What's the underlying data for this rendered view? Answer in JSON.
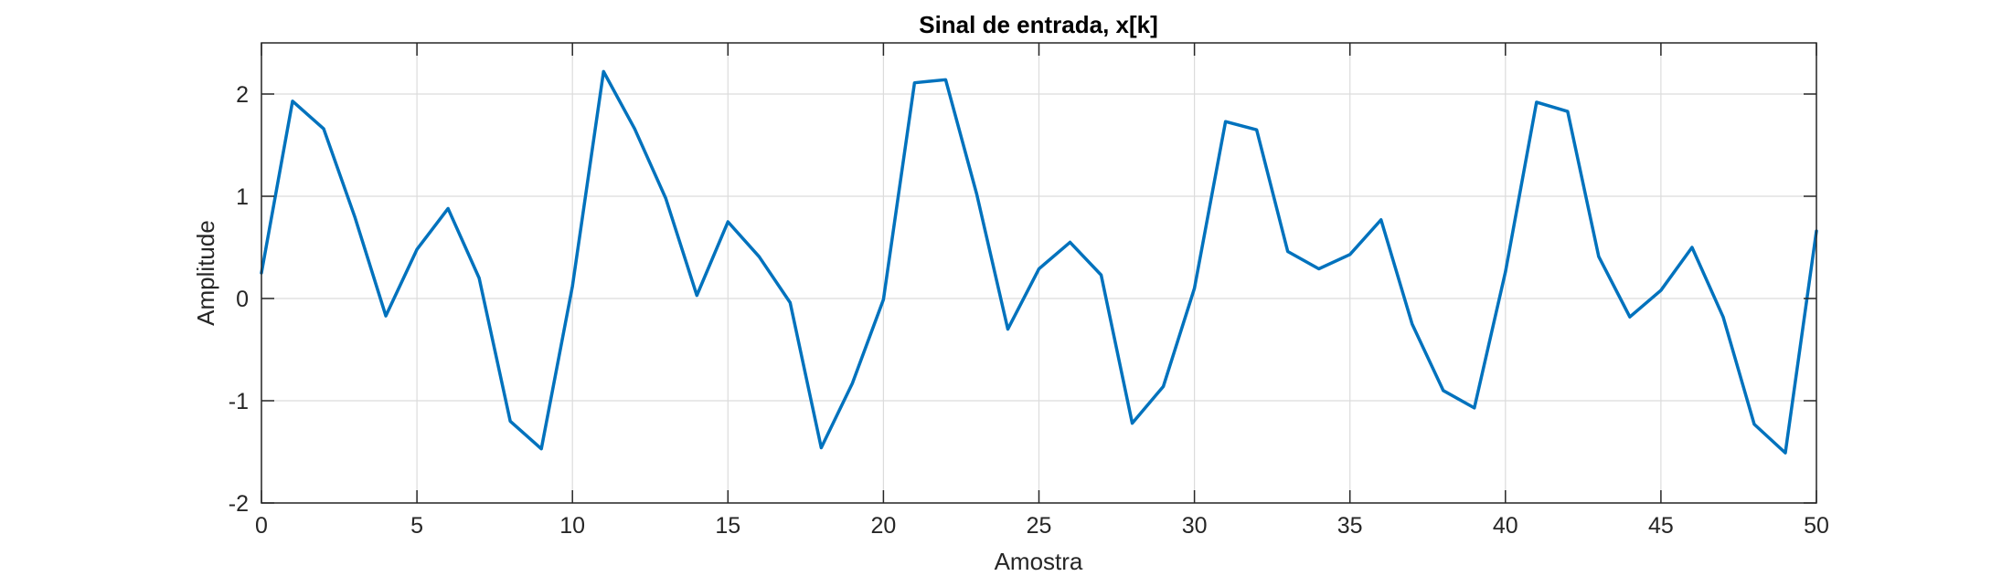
{
  "chart_data": {
    "type": "line",
    "title": "Sinal de entrada, x[k]",
    "xlabel": "Amostra",
    "ylabel": "Amplitude",
    "xlim": [
      0,
      50
    ],
    "ylim": [
      -2,
      2.5
    ],
    "xticks": [
      0,
      5,
      10,
      15,
      20,
      25,
      30,
      35,
      40,
      45,
      50
    ],
    "yticks": [
      -2,
      -1,
      0,
      1,
      2
    ],
    "xtick_labels": [
      "0",
      "5",
      "10",
      "15",
      "20",
      "25",
      "30",
      "35",
      "40",
      "45",
      "50"
    ],
    "ytick_labels": [
      "-2",
      "-1",
      "0",
      "1",
      "2"
    ],
    "grid": true,
    "series": [
      {
        "color": "#0072BD",
        "x": [
          0,
          1,
          2,
          3,
          4,
          5,
          6,
          7,
          8,
          9,
          10,
          11,
          12,
          13,
          14,
          15,
          16,
          17,
          18,
          19,
          20,
          21,
          22,
          23,
          24,
          25,
          26,
          27,
          28,
          29,
          30,
          31,
          32,
          33,
          34,
          35,
          36,
          37,
          38,
          39,
          40,
          41,
          42,
          43,
          44,
          45,
          46,
          47,
          48,
          49,
          50
        ],
        "values": [
          0.25,
          1.93,
          1.66,
          0.8,
          -0.17,
          0.48,
          0.88,
          0.2,
          -1.2,
          -1.47,
          0.12,
          2.22,
          1.66,
          0.98,
          0.03,
          0.75,
          0.41,
          -0.04,
          -1.46,
          -0.83,
          -0.01,
          2.11,
          2.14,
          1.02,
          -0.3,
          0.29,
          0.55,
          0.23,
          -1.22,
          -0.86,
          0.1,
          1.73,
          1.65,
          0.46,
          0.29,
          0.43,
          0.77,
          -0.25,
          -0.9,
          -1.07,
          0.26,
          1.92,
          1.83,
          0.41,
          -0.18,
          0.08,
          0.5,
          -0.18,
          -1.23,
          -1.51,
          0.66
        ]
      }
    ]
  }
}
